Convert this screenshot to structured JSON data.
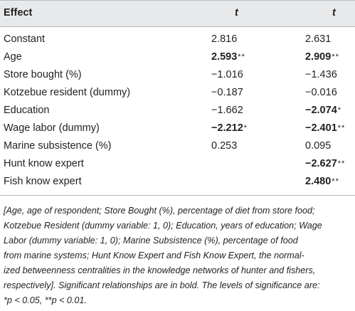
{
  "table": {
    "headers": {
      "effect": "Effect",
      "t1": "t",
      "t2": "t"
    },
    "rows": [
      {
        "label": "Constant",
        "v1": "2.816",
        "v1_sig": "",
        "v1_bold": false,
        "v2": "2.631",
        "v2_sig": "",
        "v2_bold": false
      },
      {
        "label": "Age",
        "v1": "2.593",
        "v1_sig": "**",
        "v1_bold": true,
        "v2": "2.909",
        "v2_sig": "**",
        "v2_bold": true
      },
      {
        "label": "Store bought (%)",
        "v1": "−1.016",
        "v1_sig": "",
        "v1_bold": false,
        "v2": "−1.436",
        "v2_sig": "",
        "v2_bold": false
      },
      {
        "label": "Kotzebue resident (dummy)",
        "v1": "−0.187",
        "v1_sig": "",
        "v1_bold": false,
        "v2": "−0.016",
        "v2_sig": "",
        "v2_bold": false
      },
      {
        "label": "Education",
        "v1": "−1.662",
        "v1_sig": "",
        "v1_bold": false,
        "v2": "−2.074",
        "v2_sig": "*",
        "v2_bold": true
      },
      {
        "label": "Wage labor (dummy)",
        "v1": "−2.212",
        "v1_sig": "*",
        "v1_bold": true,
        "v2": "−2.401",
        "v2_sig": "**",
        "v2_bold": true
      },
      {
        "label": "Marine subsistence (%)",
        "v1": "0.253",
        "v1_sig": "",
        "v1_bold": false,
        "v2": "0.095",
        "v2_sig": "",
        "v2_bold": false
      },
      {
        "label": "Hunt know expert",
        "v1": "",
        "v1_sig": "",
        "v1_bold": false,
        "v2": "−2.627",
        "v2_sig": "**",
        "v2_bold": true
      },
      {
        "label": "Fish know expert",
        "v1": "",
        "v1_sig": "",
        "v1_bold": false,
        "v2": "2.480",
        "v2_sig": "**",
        "v2_bold": true
      }
    ]
  },
  "footnote": {
    "lines": [
      "[Age, age of respondent; Store Bought (%), percentage of diet from store food;",
      "Kotzebue Resident (dummy variable: 1, 0); Education, years of education; Wage",
      "Labor (dummy variable: 1, 0); Marine Subsistence (%), percentage of food",
      "from marine systems; Hunt Know Expert and Fish Know Expert, the normal-",
      "ized betweenness centralities in the knowledge networks of hunter and fishers,",
      "respectively]. Significant relationships are in bold. The levels of significance are:",
      "*p < 0.05, **p < 0.01."
    ]
  }
}
